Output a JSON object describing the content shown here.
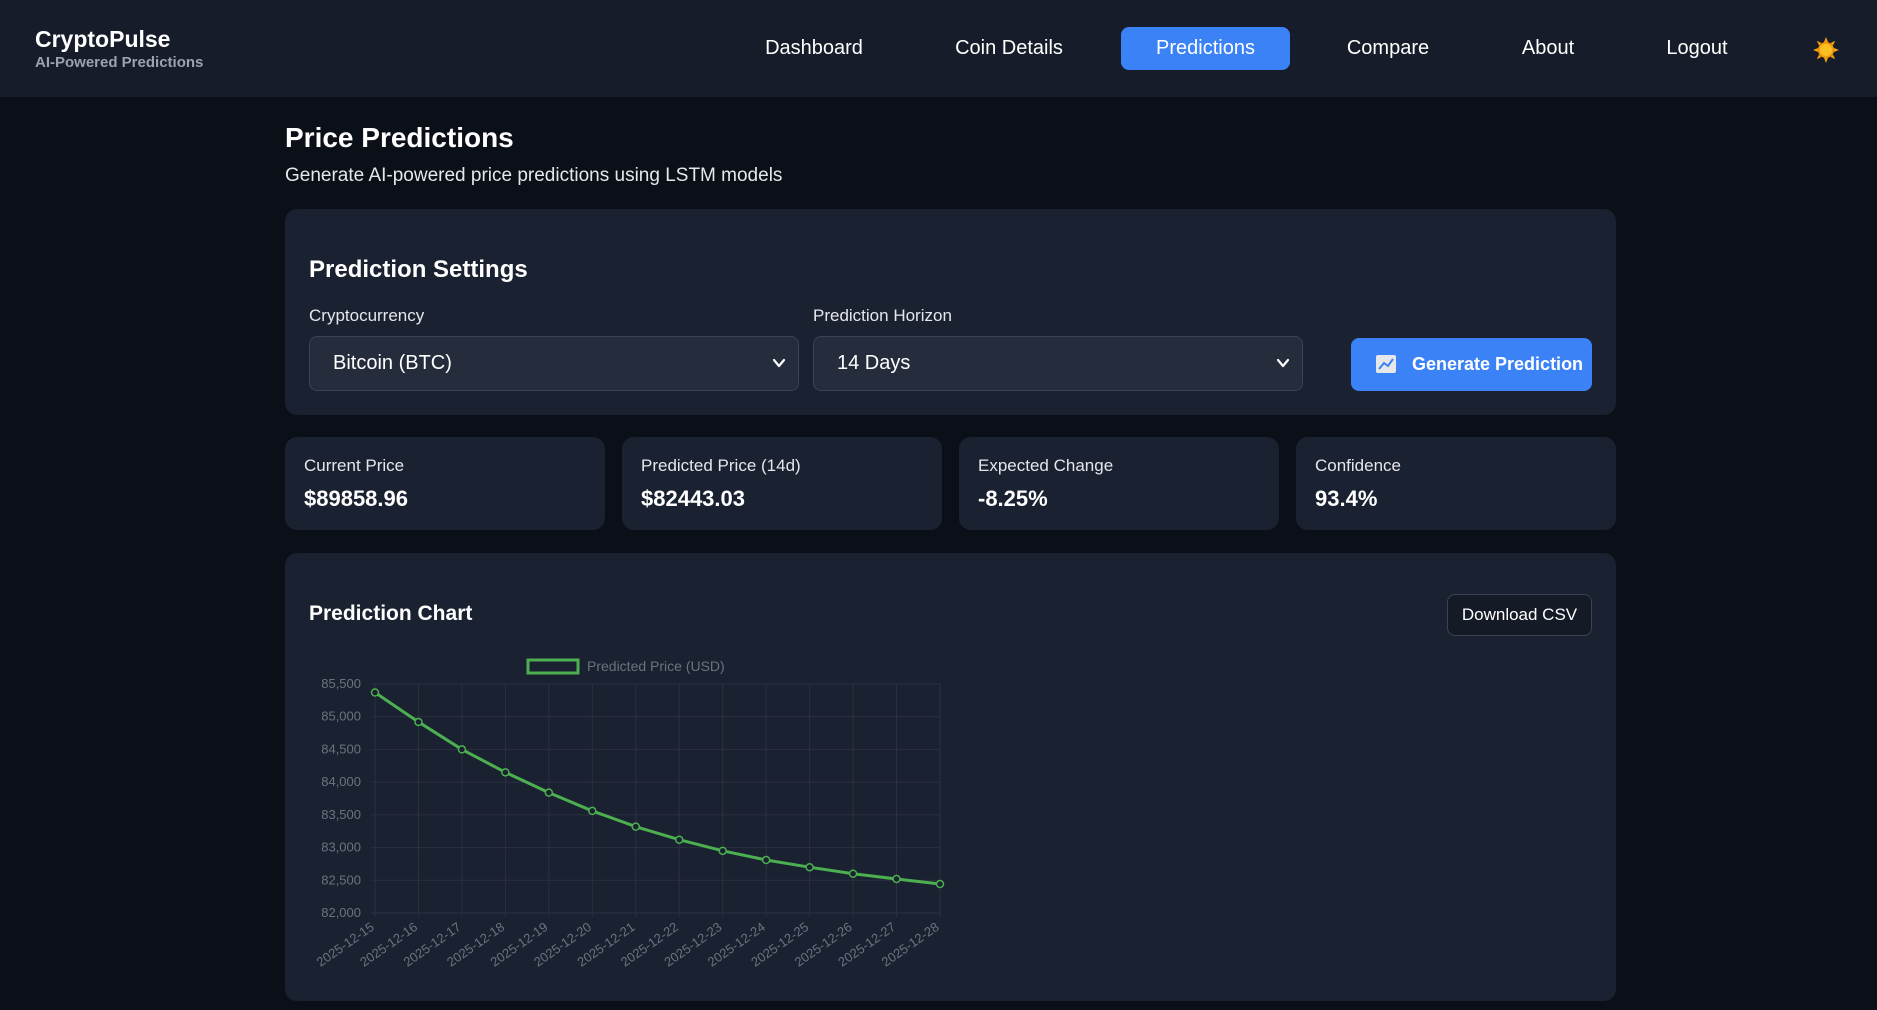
{
  "brand": {
    "name": "CryptoPulse",
    "tagline": "AI-Powered Predictions"
  },
  "nav": {
    "items": [
      {
        "label": "Dashboard",
        "active": false
      },
      {
        "label": "Coin Details",
        "active": false
      },
      {
        "label": "Predictions",
        "active": true
      },
      {
        "label": "Compare",
        "active": false
      },
      {
        "label": "About",
        "active": false
      },
      {
        "label": "Logout",
        "active": false
      }
    ],
    "theme_toggle_icon": "sun-icon"
  },
  "page": {
    "title": "Price Predictions",
    "subtitle": "Generate AI-powered price predictions using LSTM models"
  },
  "settings": {
    "title": "Prediction Settings",
    "crypto_label": "Cryptocurrency",
    "crypto_value": "Bitcoin (BTC)",
    "horizon_label": "Prediction Horizon",
    "horizon_value": "14 Days",
    "generate_label": "Generate Prediction",
    "generate_icon": "chart-icon"
  },
  "stats": [
    {
      "label": "Current Price",
      "value": "$89858.96"
    },
    {
      "label": "Predicted Price (14d)",
      "value": "$82443.03"
    },
    {
      "label": "Expected Change",
      "value": "-8.25%"
    },
    {
      "label": "Confidence",
      "value": "93.4%"
    }
  ],
  "chart_section": {
    "title": "Prediction Chart",
    "download_label": "Download CSV"
  },
  "colors": {
    "accent": "#3b82f6",
    "line": "#4caf50",
    "background": "#0b0f17",
    "card": "#1a2130"
  },
  "chart_data": {
    "type": "line",
    "x": [
      "2025-12-15",
      "2025-12-16",
      "2025-12-17",
      "2025-12-18",
      "2025-12-19",
      "2025-12-20",
      "2025-12-21",
      "2025-12-22",
      "2025-12-23",
      "2025-12-24",
      "2025-12-25",
      "2025-12-26",
      "2025-12-27",
      "2025-12-28"
    ],
    "series": [
      {
        "name": "Predicted Price (USD)",
        "values": [
          85370,
          84920,
          84500,
          84150,
          83840,
          83560,
          83320,
          83120,
          82950,
          82810,
          82700,
          82600,
          82520,
          82443
        ]
      }
    ],
    "ylim": [
      82000,
      85500
    ],
    "yticks": [
      85500,
      85000,
      84500,
      84000,
      83500,
      83000,
      82500,
      82000
    ],
    "ytick_labels": [
      "85,500",
      "85,000",
      "84,500",
      "84,000",
      "83,500",
      "83,000",
      "82,500",
      "82,000"
    ],
    "grid": true,
    "legend": "top"
  }
}
